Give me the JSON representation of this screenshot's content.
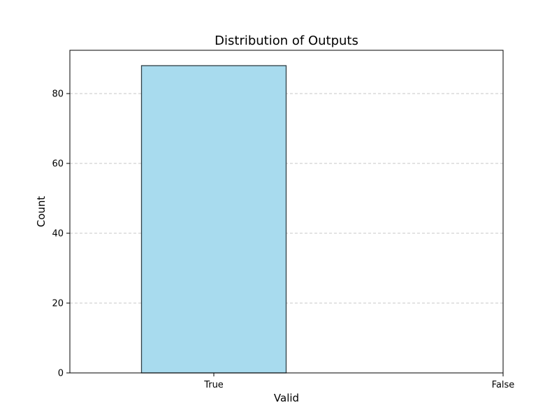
{
  "chart_data": {
    "type": "bar",
    "title": "Distribution of Outputs",
    "xlabel": "Valid",
    "ylabel": "Count",
    "categories": [
      "True",
      "False"
    ],
    "values": [
      88,
      0
    ],
    "ylim": [
      0,
      92.4
    ],
    "yticks": [
      0,
      20,
      40,
      60,
      80
    ],
    "grid": {
      "y": true,
      "x": false,
      "style": "dashed"
    },
    "bar_color": "#a8dbee",
    "bar_edge_color": "#2f3f45"
  }
}
